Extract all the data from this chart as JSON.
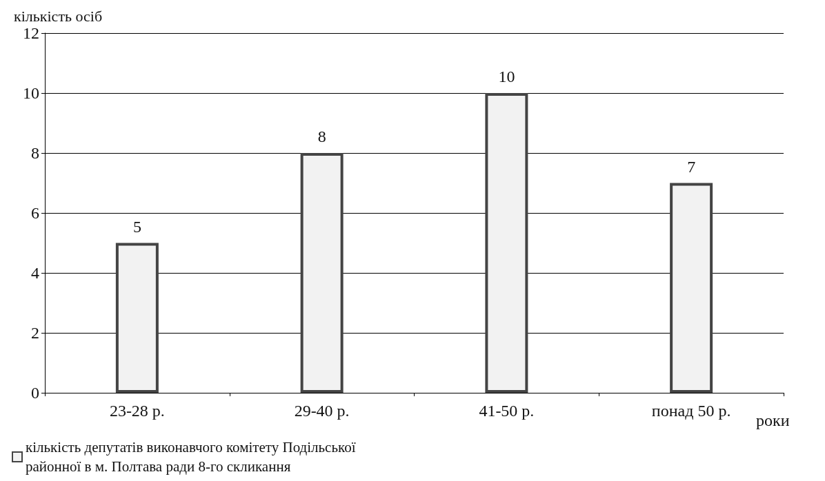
{
  "chart_data": {
    "type": "bar",
    "ylabel": "кількість осіб",
    "xlabel": "роки",
    "categories": [
      "23-28 р.",
      "29-40 р.",
      "41-50 р.",
      "понад 50 р."
    ],
    "series": [
      {
        "name": "кількість депутатів виконавчого комітету Подільської районної в м. Полтава ради 8-го скликання",
        "color": "#f2f2f2",
        "values": [
          5,
          8,
          10,
          7
        ]
      }
    ],
    "ylim": [
      0,
      12
    ],
    "yticks": [
      0,
      2,
      4,
      6,
      8,
      10,
      12
    ],
    "grid": "y",
    "legend": "bottom left",
    "data_labels": true
  }
}
